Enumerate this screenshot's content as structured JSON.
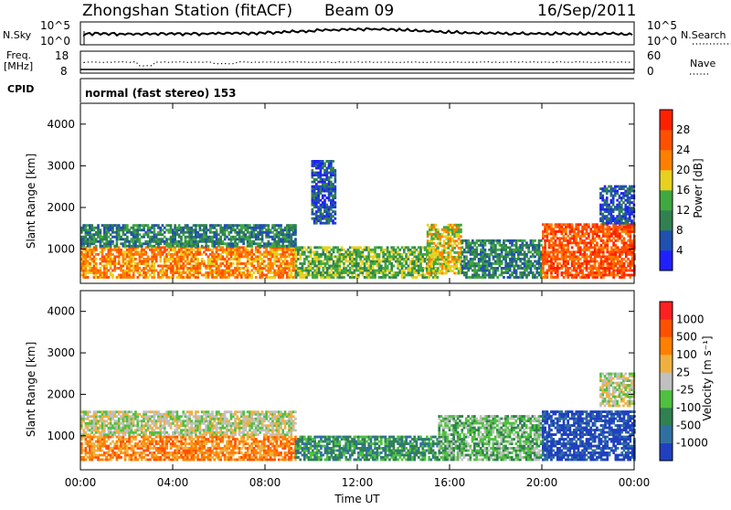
{
  "header": {
    "station": "Zhongshan Station (fitACF)",
    "beam": "Beam 09",
    "date": "16/Sep/2011"
  },
  "strip": {
    "nsky_label": "N.Sky",
    "nsky_ticks": [
      "10^5",
      "10^0"
    ],
    "nsearch_label": "N.Search",
    "nsearch_ticks": [
      "10^5",
      "10^0"
    ],
    "freq_label_line1": "Freq.",
    "freq_label_line2": "[MHz]",
    "freq_ticks": [
      "18",
      "8"
    ],
    "nave_label": "Nave",
    "nave_ticks": [
      "60",
      "0"
    ],
    "cpid_label": "CPID",
    "cpid_text": "normal (fast stereo) 153"
  },
  "chart_data": [
    {
      "type": "heatmap",
      "name": "power-panel",
      "ylabel": "Slant Range [km]",
      "xlabel": "",
      "y_ticks": [
        "1000",
        "2000",
        "3000",
        "4000"
      ],
      "y_tick_values": [
        1000,
        2000,
        3000,
        4000
      ],
      "ylim": [
        180,
        4500
      ],
      "xlim": [
        0,
        24
      ],
      "colorbar": {
        "label": "Power [dB]",
        "ticks": [
          "4",
          "8",
          "12",
          "16",
          "20",
          "24",
          "28"
        ],
        "colors": [
          "#2020ff",
          "#2050b0",
          "#308050",
          "#40a840",
          "#e8d020",
          "#ff8000",
          "#ff5000",
          "#ff2000"
        ]
      },
      "bands": [
        {
          "t0": 0.0,
          "t1": 9.3,
          "r0": 300,
          "r1": 1050,
          "level": 5
        },
        {
          "t0": 0.0,
          "t1": 9.3,
          "r0": 1050,
          "r1": 1600,
          "level": 2
        },
        {
          "t0": 9.3,
          "t1": 15.5,
          "r0": 300,
          "r1": 1050,
          "level": 3
        },
        {
          "t0": 10.0,
          "t1": 11.0,
          "r0": 1600,
          "r1": 3100,
          "level": 1
        },
        {
          "t0": 15.0,
          "t1": 16.5,
          "r0": 400,
          "r1": 1600,
          "level": 4
        },
        {
          "t0": 16.5,
          "t1": 20.0,
          "r0": 300,
          "r1": 1200,
          "level": 2
        },
        {
          "t0": 20.0,
          "t1": 24.0,
          "r0": 300,
          "r1": 1600,
          "level": 6
        },
        {
          "t0": 22.5,
          "t1": 24.0,
          "r0": 1600,
          "r1": 2500,
          "level": 1
        }
      ]
    },
    {
      "type": "heatmap",
      "name": "velocity-panel",
      "ylabel": "Slant Range [km]",
      "xlabel": "Time UT",
      "x_ticks": [
        "00:00",
        "04:00",
        "08:00",
        "12:00",
        "16:00",
        "20:00",
        "00:00"
      ],
      "x_tick_values": [
        0,
        4,
        8,
        12,
        16,
        20,
        24
      ],
      "y_ticks": [
        "1000",
        "2000",
        "3000",
        "4000"
      ],
      "y_tick_values": [
        1000,
        2000,
        3000,
        4000
      ],
      "ylim": [
        180,
        4500
      ],
      "xlim": [
        0,
        24
      ],
      "colorbar": {
        "label": "Velocity [m s⁻¹]",
        "ticks": [
          "1000",
          "500",
          "100",
          "25",
          "-25",
          "-100",
          "-500",
          "-1000"
        ],
        "colors": [
          "#2040c0",
          "#3070a0",
          "#308050",
          "#50c040",
          "#c0c0c0",
          "#f0b040",
          "#ff8000",
          "#ff5000",
          "#ff2020"
        ]
      },
      "bands": [
        {
          "t0": 0.0,
          "t1": 9.3,
          "r0": 400,
          "r1": 1000,
          "level": 6
        },
        {
          "t0": 0.0,
          "t1": 9.3,
          "r0": 1000,
          "r1": 1600,
          "level": 4
        },
        {
          "t0": 9.3,
          "t1": 15.5,
          "r0": 400,
          "r1": 1000,
          "level": 2
        },
        {
          "t0": 15.5,
          "t1": 20.0,
          "r0": 400,
          "r1": 1500,
          "level": 3
        },
        {
          "t0": 20.0,
          "t1": 24.0,
          "r0": 400,
          "r1": 1600,
          "level": 0
        },
        {
          "t0": 22.5,
          "t1": 24.0,
          "r0": 1700,
          "r1": 2500,
          "level": 4
        }
      ]
    }
  ]
}
